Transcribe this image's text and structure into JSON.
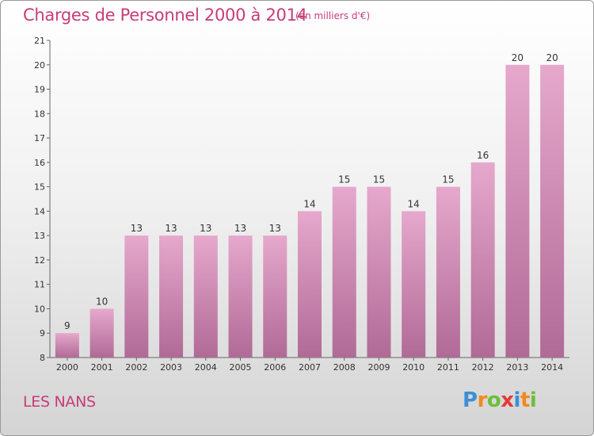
{
  "header": {
    "title": "Charges de Personnel 2000 à 2014",
    "unit": "(en milliers d'€)"
  },
  "footer": {
    "place": "LES NANS",
    "logo_letters": [
      "P",
      "r",
      "o",
      "x",
      "i",
      "t",
      "i"
    ],
    "logo_colors": [
      "#3c8fd6",
      "#f28a1e",
      "#6cbf3a",
      "#e53a3a",
      "#3c8fd6",
      "#f28a1e",
      "#6cbf3a"
    ]
  },
  "chart_data": {
    "type": "bar",
    "categories": [
      "2000",
      "2001",
      "2002",
      "2003",
      "2004",
      "2005",
      "2006",
      "2007",
      "2008",
      "2009",
      "2010",
      "2011",
      "2012",
      "2013",
      "2014"
    ],
    "values": [
      9,
      10,
      13,
      13,
      13,
      13,
      13,
      14,
      15,
      15,
      14,
      15,
      16,
      20,
      20
    ],
    "title": "Charges de Personnel 2000 à 2014",
    "ylim": [
      8,
      21
    ],
    "yticks": [
      8,
      9,
      10,
      11,
      12,
      13,
      14,
      15,
      16,
      17,
      18,
      19,
      20,
      21
    ],
    "grid": false,
    "bar_color_top": "#e6a8cc",
    "bar_color_bottom": "#b06a96",
    "label_color": "#333333",
    "axis_color": "#666666"
  }
}
